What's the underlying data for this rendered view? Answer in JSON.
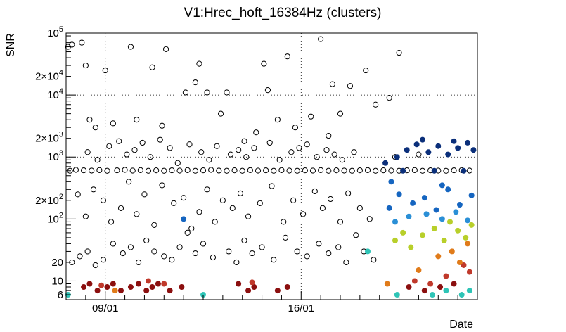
{
  "chart_data": {
    "type": "scatter",
    "title": "V1:Hrec_hoft_16384Hz (clusters)",
    "xlabel": "Date",
    "ylabel": "SNR",
    "y_scale": "log",
    "ylim": [
      5,
      100000
    ],
    "xlim": [
      0,
      21
    ],
    "grid": true,
    "x_ticks": [
      {
        "value": 2,
        "label": "09/01"
      },
      {
        "value": 12,
        "label": "16/01"
      }
    ],
    "y_ticks": [
      {
        "value": 6,
        "label": "6"
      },
      {
        "value": 10,
        "label": "10"
      },
      {
        "value": 20,
        "label": "20"
      },
      {
        "value": 100,
        "label": "10^2"
      },
      {
        "value": 200,
        "label": "2×10^2"
      },
      {
        "value": 1000,
        "label": "10^3"
      },
      {
        "value": 2000,
        "label": "2×10^3"
      },
      {
        "value": 10000,
        "label": "10^4"
      },
      {
        "value": 20000,
        "label": "2×10^4"
      },
      {
        "value": 100000,
        "label": "10^5"
      }
    ],
    "colors": {
      "open_marker": "#000000",
      "dark_red": "#8b0f0f",
      "red": "#c0392b",
      "orange": "#e07b1a",
      "yellow_green": "#b8cf2a",
      "teal": "#2ec4b6",
      "light_blue": "#2a8fd6",
      "mid_blue": "#1565c0",
      "dark_blue": "#0b2f7a"
    },
    "series": [
      {
        "marker": "open-circle",
        "color": "#000000",
        "points": [
          [
            0.1,
            60000
          ],
          [
            0.3,
            65000
          ],
          [
            0.8,
            70000
          ],
          [
            1.0,
            30000
          ],
          [
            1.2,
            4000
          ],
          [
            2.0,
            25000
          ],
          [
            3.3,
            60000
          ],
          [
            4.4,
            28000
          ],
          [
            5.1,
            55000
          ],
          [
            6.1,
            11000
          ],
          [
            6.6,
            16000
          ],
          [
            6.8,
            32000
          ],
          [
            7.2,
            11000
          ],
          [
            8.2,
            11000
          ],
          [
            9.1,
            1800
          ],
          [
            10.1,
            32000
          ],
          [
            10.3,
            12000
          ],
          [
            11.3,
            42000
          ],
          [
            13.0,
            80000
          ],
          [
            13.6,
            15000
          ],
          [
            14.5,
            14000
          ],
          [
            15.3,
            25000
          ],
          [
            16.5,
            9000
          ],
          [
            17.0,
            48000
          ],
          [
            1.5,
            3000
          ],
          [
            2.4,
            3500
          ],
          [
            3.6,
            4000
          ],
          [
            4.9,
            3200
          ],
          [
            7.9,
            5000
          ],
          [
            9.7,
            2500
          ],
          [
            10.8,
            4000
          ],
          [
            11.7,
            3000
          ],
          [
            12.5,
            4500
          ],
          [
            13.4,
            2200
          ],
          [
            14.0,
            5000
          ],
          [
            15.8,
            7000
          ],
          [
            0.2,
            600
          ],
          [
            0.5,
            620
          ],
          [
            0.9,
            610
          ],
          [
            1.3,
            605
          ],
          [
            1.7,
            615
          ],
          [
            2.1,
            600
          ],
          [
            2.6,
            610
          ],
          [
            3.0,
            620
          ],
          [
            3.4,
            605
          ],
          [
            3.8,
            615
          ],
          [
            4.2,
            600
          ],
          [
            4.6,
            610
          ],
          [
            5.0,
            600
          ],
          [
            5.4,
            610
          ],
          [
            5.8,
            605
          ],
          [
            6.2,
            615
          ],
          [
            6.6,
            600
          ],
          [
            7.0,
            610
          ],
          [
            7.4,
            620
          ],
          [
            7.8,
            605
          ],
          [
            8.2,
            600
          ],
          [
            8.6,
            610
          ],
          [
            9.0,
            600
          ],
          [
            9.4,
            615
          ],
          [
            9.8,
            605
          ],
          [
            10.2,
            610
          ],
          [
            10.6,
            600
          ],
          [
            11.0,
            615
          ],
          [
            11.4,
            605
          ],
          [
            11.8,
            600
          ],
          [
            12.2,
            610
          ],
          [
            12.6,
            605
          ],
          [
            13.0,
            615
          ],
          [
            13.4,
            600
          ],
          [
            13.8,
            610
          ],
          [
            14.2,
            605
          ],
          [
            14.6,
            600
          ],
          [
            15.0,
            610
          ],
          [
            15.4,
            615
          ],
          [
            15.8,
            600
          ],
          [
            16.2,
            610
          ],
          [
            16.6,
            605
          ],
          [
            17.0,
            600
          ],
          [
            17.4,
            610
          ],
          [
            17.8,
            615
          ],
          [
            18.2,
            600
          ],
          [
            18.6,
            610
          ],
          [
            19.0,
            605
          ],
          [
            19.4,
            600
          ],
          [
            19.8,
            610
          ],
          [
            20.2,
            615
          ],
          [
            20.6,
            605
          ],
          [
            1.1,
            1200
          ],
          [
            1.6,
            900
          ],
          [
            2.2,
            1500
          ],
          [
            2.7,
            1800
          ],
          [
            3.1,
            1100
          ],
          [
            3.5,
            1300
          ],
          [
            3.9,
            1700
          ],
          [
            4.3,
            1000
          ],
          [
            4.8,
            1900
          ],
          [
            5.3,
            1400
          ],
          [
            5.7,
            800
          ],
          [
            6.3,
            1600
          ],
          [
            6.9,
            1200
          ],
          [
            7.3,
            900
          ],
          [
            7.7,
            1500
          ],
          [
            8.4,
            1100
          ],
          [
            8.8,
            1300
          ],
          [
            9.2,
            1000
          ],
          [
            9.6,
            1400
          ],
          [
            10.4,
            1700
          ],
          [
            10.9,
            900
          ],
          [
            11.5,
            1200
          ],
          [
            11.9,
            1400
          ],
          [
            12.3,
            1600
          ],
          [
            12.8,
            1000
          ],
          [
            13.3,
            1300
          ],
          [
            13.7,
            1100
          ],
          [
            14.1,
            900
          ],
          [
            14.7,
            1200
          ],
          [
            16.8,
            1000
          ],
          [
            18.0,
            1100
          ],
          [
            0.6,
            250
          ],
          [
            1.0,
            110
          ],
          [
            1.4,
            300
          ],
          [
            1.9,
            200
          ],
          [
            2.3,
            90
          ],
          [
            2.8,
            150
          ],
          [
            3.2,
            400
          ],
          [
            3.6,
            120
          ],
          [
            4.0,
            250
          ],
          [
            4.5,
            80
          ],
          [
            4.9,
            350
          ],
          [
            5.5,
            180
          ],
          [
            6.0,
            220
          ],
          [
            6.4,
            70
          ],
          [
            6.8,
            130
          ],
          [
            7.2,
            300
          ],
          [
            7.6,
            90
          ],
          [
            8.0,
            200
          ],
          [
            8.5,
            150
          ],
          [
            8.9,
            260
          ],
          [
            9.3,
            110
          ],
          [
            9.9,
            180
          ],
          [
            10.5,
            340
          ],
          [
            11.1,
            90
          ],
          [
            11.6,
            200
          ],
          [
            12.1,
            120
          ],
          [
            12.7,
            280
          ],
          [
            13.1,
            150
          ],
          [
            13.5,
            210
          ],
          [
            14.0,
            90
          ],
          [
            14.4,
            260
          ],
          [
            15.0,
            150
          ],
          [
            15.5,
            100
          ],
          [
            0.3,
            20
          ],
          [
            0.7,
            25
          ],
          [
            1.1,
            30
          ],
          [
            1.5,
            18
          ],
          [
            1.9,
            22
          ],
          [
            2.4,
            40
          ],
          [
            2.9,
            28
          ],
          [
            3.3,
            35
          ],
          [
            3.7,
            20
          ],
          [
            4.1,
            45
          ],
          [
            4.5,
            30
          ],
          [
            5.0,
            25
          ],
          [
            5.4,
            22
          ],
          [
            5.8,
            35
          ],
          [
            6.2,
            60
          ],
          [
            6.6,
            28
          ],
          [
            7.0,
            40
          ],
          [
            7.5,
            24
          ],
          [
            8.3,
            30
          ],
          [
            8.7,
            20
          ],
          [
            9.1,
            45
          ],
          [
            9.5,
            28
          ],
          [
            10.0,
            35
          ],
          [
            10.6,
            22
          ],
          [
            11.2,
            50
          ],
          [
            11.8,
            30
          ],
          [
            12.3,
            25
          ],
          [
            12.9,
            40
          ],
          [
            13.4,
            28
          ],
          [
            13.9,
            35
          ],
          [
            14.3,
            20
          ],
          [
            14.8,
            55
          ],
          [
            15.2,
            30
          ],
          [
            15.7,
            22
          ]
        ]
      },
      {
        "marker": "filled-circle",
        "color": "#8b0f0f",
        "points": [
          [
            0.9,
            8
          ],
          [
            1.2,
            9
          ],
          [
            1.6,
            7
          ],
          [
            2.1,
            8
          ],
          [
            2.4,
            9
          ],
          [
            2.8,
            7
          ],
          [
            3.3,
            8
          ],
          [
            3.7,
            9
          ],
          [
            4.1,
            7
          ],
          [
            4.4,
            8
          ],
          [
            4.7,
            9
          ],
          [
            5.3,
            7
          ],
          [
            5.9,
            8
          ],
          [
            8.8,
            9
          ],
          [
            9.3,
            7
          ],
          [
            9.6,
            8
          ],
          [
            10.8,
            7
          ],
          [
            11.3,
            8
          ],
          [
            17.5,
            8
          ],
          [
            18.3,
            7
          ],
          [
            19.1,
            8
          ],
          [
            19.8,
            9
          ]
        ]
      },
      {
        "marker": "filled-circle",
        "color": "#c0392b",
        "points": [
          [
            1.8,
            8.5
          ],
          [
            4.2,
            10
          ],
          [
            5.0,
            9
          ],
          [
            9.5,
            9.5
          ],
          [
            17.8,
            10
          ],
          [
            18.6,
            9
          ],
          [
            19.4,
            12
          ],
          [
            20.3,
            18
          ],
          [
            20.6,
            14
          ]
        ]
      },
      {
        "marker": "filled-circle",
        "color": "#e07b1a",
        "points": [
          [
            2.5,
            7
          ],
          [
            16.4,
            9
          ],
          [
            18.0,
            15
          ],
          [
            19.0,
            25
          ],
          [
            19.7,
            30
          ],
          [
            20.1,
            20
          ],
          [
            20.5,
            40
          ]
        ]
      },
      {
        "marker": "filled-circle",
        "color": "#b8cf2a",
        "points": [
          [
            16.8,
            45
          ],
          [
            17.2,
            60
          ],
          [
            17.6,
            35
          ],
          [
            18.2,
            55
          ],
          [
            18.8,
            70
          ],
          [
            19.3,
            45
          ],
          [
            19.6,
            90
          ],
          [
            20.0,
            65
          ],
          [
            20.4,
            50
          ],
          [
            20.7,
            80
          ]
        ]
      },
      {
        "marker": "filled-circle",
        "color": "#2ec4b6",
        "points": [
          [
            0.1,
            6
          ],
          [
            7.0,
            6
          ],
          [
            15.4,
            30
          ],
          [
            16.9,
            6
          ],
          [
            18.7,
            6
          ],
          [
            19.4,
            7
          ],
          [
            20.2,
            6
          ],
          [
            20.6,
            7
          ]
        ]
      },
      {
        "marker": "filled-circle",
        "color": "#2a8fd6",
        "points": [
          [
            16.8,
            90
          ],
          [
            17.5,
            110
          ],
          [
            18.4,
            120
          ],
          [
            19.2,
            100
          ],
          [
            19.9,
            130
          ],
          [
            20.5,
            95
          ]
        ]
      },
      {
        "marker": "filled-circle",
        "color": "#1565c0",
        "points": [
          [
            6.0,
            100
          ],
          [
            16.5,
            150
          ],
          [
            17.0,
            250
          ],
          [
            17.7,
            180
          ],
          [
            18.3,
            220
          ],
          [
            18.9,
            140
          ],
          [
            19.5,
            300
          ],
          [
            20.1,
            170
          ],
          [
            20.7,
            240
          ],
          [
            16.6,
            400
          ],
          [
            19.2,
            350
          ]
        ]
      },
      {
        "marker": "filled-circle",
        "color": "#0b2f7a",
        "points": [
          [
            16.3,
            800
          ],
          [
            16.9,
            1000
          ],
          [
            17.4,
            1300
          ],
          [
            17.9,
            1600
          ],
          [
            18.5,
            1200
          ],
          [
            19.0,
            1500
          ],
          [
            19.5,
            1100
          ],
          [
            20.0,
            1400
          ],
          [
            20.5,
            1700
          ],
          [
            20.8,
            1300
          ],
          [
            18.2,
            1900
          ],
          [
            19.8,
            1800
          ],
          [
            17.2,
            600
          ],
          [
            18.8,
            600
          ],
          [
            20.3,
            600
          ]
        ]
      }
    ]
  }
}
